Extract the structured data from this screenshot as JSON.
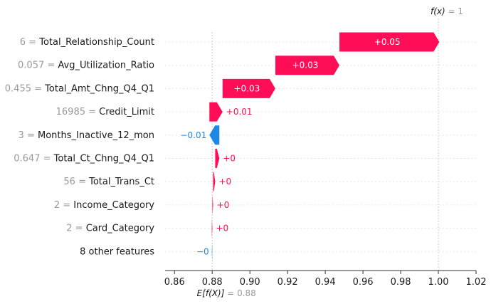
{
  "chart_data": {
    "type": "waterfall",
    "fx_label": "f(x)",
    "fx_value": "1",
    "base_label": "E[f(X)]",
    "base_value": "0.88",
    "base_numeric": 0.88,
    "final_numeric": 1.0,
    "xlim": [
      0.855,
      1.02
    ],
    "ticks": [
      {
        "value": 0.86,
        "label": "0.86"
      },
      {
        "value": 0.88,
        "label": "0.88"
      },
      {
        "value": 0.9,
        "label": "0.90"
      },
      {
        "value": 0.92,
        "label": "0.92"
      },
      {
        "value": 0.94,
        "label": "0.94"
      },
      {
        "value": 0.96,
        "label": "0.96"
      },
      {
        "value": 0.98,
        "label": "0.98"
      },
      {
        "value": 1.0,
        "label": "1.00"
      },
      {
        "value": 1.02,
        "label": "1.02"
      }
    ],
    "features": [
      {
        "value": "6",
        "name": "Total_Relationship_Count",
        "contribution": 0.053,
        "label": "+0.05"
      },
      {
        "value": "0.057",
        "name": "Avg_Utilization_Ratio",
        "contribution": 0.034,
        "label": "+0.03"
      },
      {
        "value": "0.455",
        "name": "Total_Amt_Chng_Q4_Q1",
        "contribution": 0.028,
        "label": "+0.03"
      },
      {
        "value": "16985",
        "name": "Credit_Limit",
        "contribution": 0.007,
        "label": "+0.01"
      },
      {
        "value": "3",
        "name": "Months_Inactive_12_mon",
        "contribution": -0.0053,
        "label": "−0.01"
      },
      {
        "value": "0.647",
        "name": "Total_Ct_Chng_Q4_Q1",
        "contribution": 0.0022,
        "label": "+0"
      },
      {
        "value": "56",
        "name": "Total_Trans_Ct",
        "contribution": 0.0011,
        "label": "+0"
      },
      {
        "value": "2",
        "name": "Income_Category",
        "contribution": 0.0004,
        "label": "+0"
      },
      {
        "value": "2",
        "name": "Card_Category",
        "contribution": 0.0003,
        "label": "+0"
      },
      {
        "value": "",
        "name": "8 other features",
        "contribution": -0.0002,
        "label": "−0"
      }
    ],
    "colors": {
      "positive": "#ff0d57",
      "negative": "#1e88e5",
      "gridline": "#e6e6e6",
      "axis": "#333333"
    }
  }
}
